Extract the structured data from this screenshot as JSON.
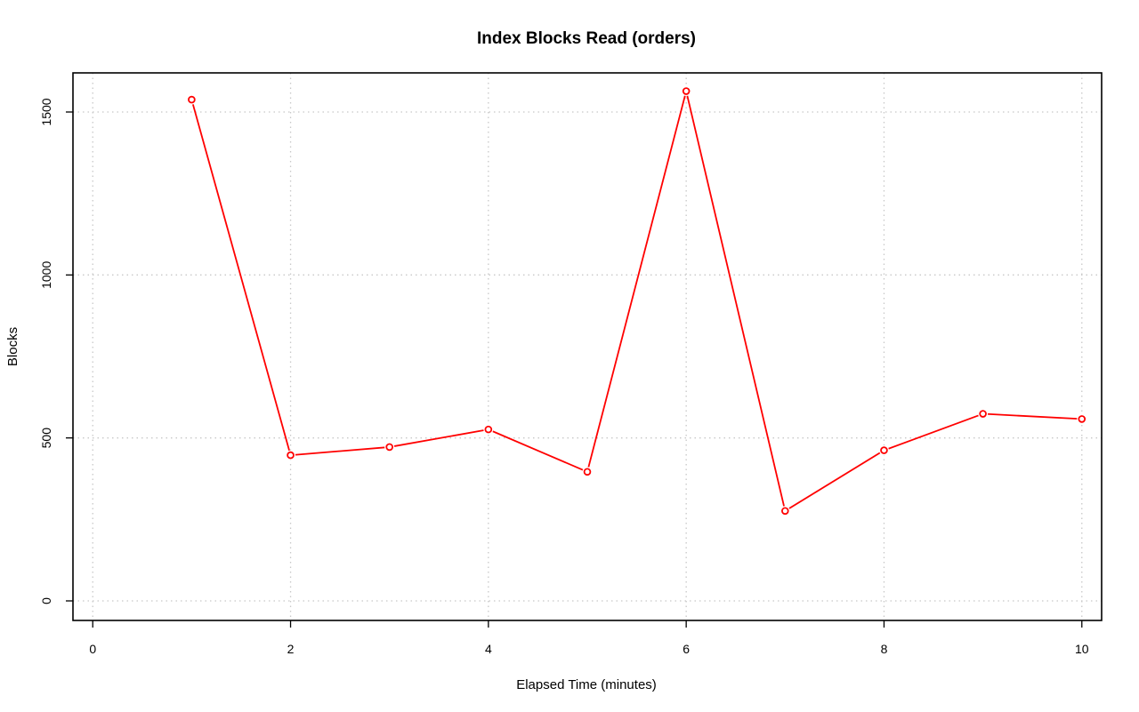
{
  "chart_data": {
    "type": "line",
    "title": "Index Blocks Read (orders)",
    "xlabel": "Elapsed Time (minutes)",
    "ylabel": "Blocks",
    "xlim": [
      -0.2,
      10.2
    ],
    "ylim": [
      -60,
      1620
    ],
    "x_ticks": [
      0,
      2,
      4,
      6,
      8,
      10
    ],
    "y_ticks": [
      0,
      500,
      1000,
      1500
    ],
    "grid": true,
    "color": "#ff0000",
    "series": [
      {
        "x": [
          1,
          2,
          3,
          4,
          5,
          6,
          7,
          8,
          9,
          10
        ],
        "values": [
          1538,
          447,
          472,
          526,
          396,
          1564,
          276,
          462,
          574,
          558
        ]
      }
    ]
  }
}
